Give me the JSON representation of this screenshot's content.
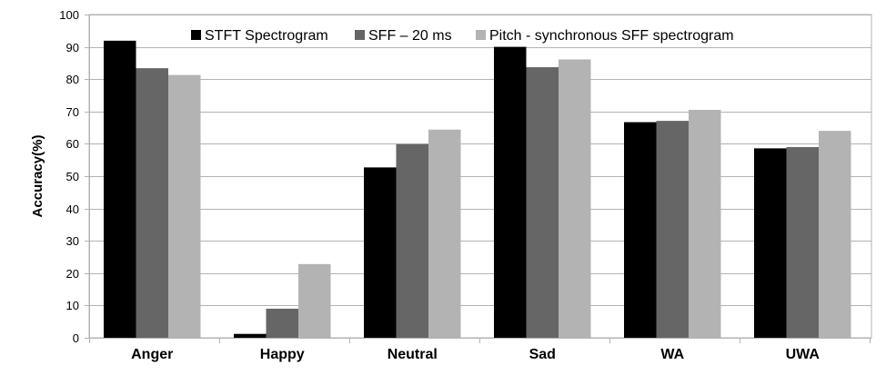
{
  "chart_data": {
    "type": "bar",
    "title": "",
    "xlabel": "",
    "ylabel": "Accuracy(%)",
    "ylim": [
      0,
      100
    ],
    "yticks": [
      0,
      10,
      20,
      30,
      40,
      50,
      60,
      70,
      80,
      90,
      100
    ],
    "grid": "horizontal",
    "legend_position": "top",
    "categories": [
      "Anger",
      "Happy",
      "Neutral",
      "Sad",
      "WA",
      "UWA"
    ],
    "series": [
      {
        "name": "STFT Spectrogram",
        "color": "#000000",
        "values": [
          91.9,
          1.2,
          52.7,
          90.0,
          66.7,
          58.6
        ]
      },
      {
        "name": "SFF – 20 ms",
        "color": "#666666",
        "values": [
          83.4,
          9.0,
          59.9,
          83.7,
          67.1,
          59.0
        ]
      },
      {
        "name": "Pitch - synchronous SFF spectrogram",
        "color": "#b3b3b3",
        "values": [
          81.3,
          22.8,
          64.4,
          86.1,
          70.5,
          64.0
        ]
      }
    ]
  }
}
